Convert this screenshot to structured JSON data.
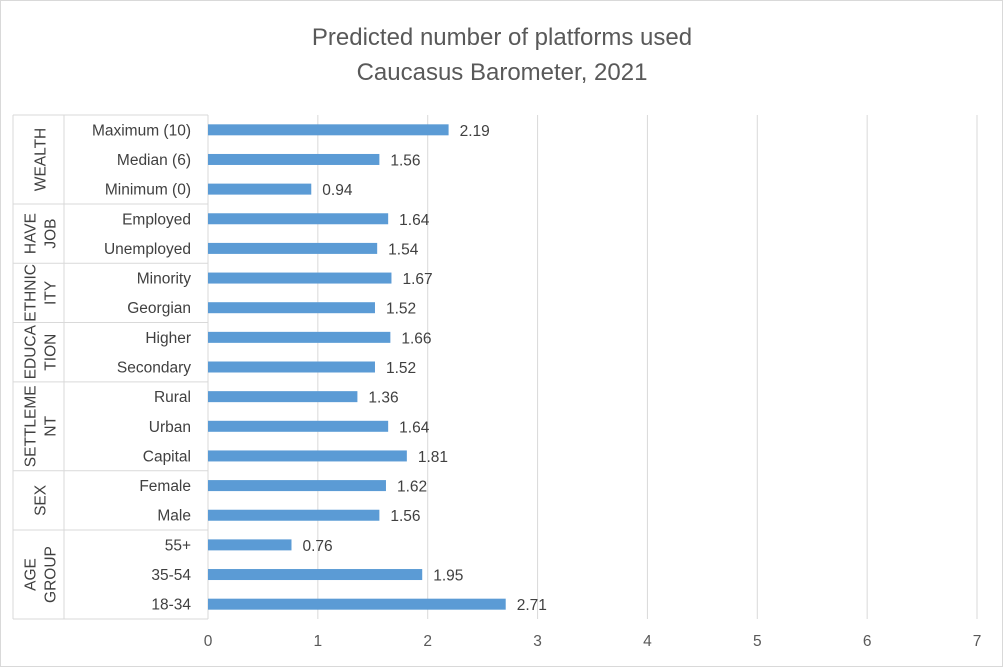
{
  "chart_data": {
    "type": "bar",
    "orientation": "horizontal",
    "title": "Predicted number of platforms used",
    "subtitle": "Caucasus Barometer, 2021",
    "xlim": [
      0,
      7
    ],
    "xticks": [
      0,
      1,
      2,
      3,
      4,
      5,
      6,
      7
    ],
    "grid": true,
    "bar_color": "#5b9bd5",
    "groups": [
      {
        "label": [
          "WEALTH"
        ],
        "categories": [
          {
            "label": "Maximum (10)",
            "value": 2.19,
            "value_label": "2.19"
          },
          {
            "label": "Median (6)",
            "value": 1.56,
            "value_label": "1.56"
          },
          {
            "label": "Minimum (0)",
            "value": 0.94,
            "value_label": "0.94"
          }
        ]
      },
      {
        "label": [
          "HAVE",
          "JOB"
        ],
        "categories": [
          {
            "label": "Employed",
            "value": 1.64,
            "value_label": "1.64"
          },
          {
            "label": "Unemployed",
            "value": 1.54,
            "value_label": "1.54"
          }
        ]
      },
      {
        "label": [
          "ETHNIC",
          "ITY"
        ],
        "categories": [
          {
            "label": "Minority",
            "value": 1.67,
            "value_label": "1.67"
          },
          {
            "label": "Georgian",
            "value": 1.52,
            "value_label": "1.52"
          }
        ]
      },
      {
        "label": [
          "EDUCA",
          "TION"
        ],
        "categories": [
          {
            "label": "Higher",
            "value": 1.66,
            "value_label": "1.66"
          },
          {
            "label": "Secondary",
            "value": 1.52,
            "value_label": "1.52"
          }
        ]
      },
      {
        "label": [
          "SETTLEME",
          "NT"
        ],
        "categories": [
          {
            "label": "Rural",
            "value": 1.36,
            "value_label": "1.36"
          },
          {
            "label": "Urban",
            "value": 1.64,
            "value_label": "1.64"
          },
          {
            "label": "Capital",
            "value": 1.81,
            "value_label": "1.81"
          }
        ]
      },
      {
        "label": [
          "SEX"
        ],
        "categories": [
          {
            "label": "Female",
            "value": 1.62,
            "value_label": "1.62"
          },
          {
            "label": "Male",
            "value": 1.56,
            "value_label": "1.56"
          }
        ]
      },
      {
        "label": [
          "AGE",
          "GROUP"
        ],
        "categories": [
          {
            "label": "55+",
            "value": 0.76,
            "value_label": "0.76"
          },
          {
            "label": "35-54",
            "value": 1.95,
            "value_label": "1.95"
          },
          {
            "label": "18-34",
            "value": 2.71,
            "value_label": "2.71"
          }
        ]
      }
    ]
  }
}
